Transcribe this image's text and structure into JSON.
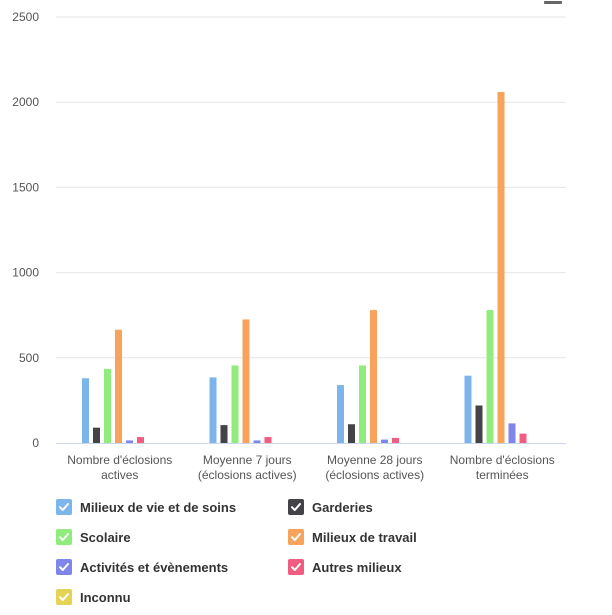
{
  "chart_data": {
    "type": "bar",
    "ylim": [
      0,
      2500
    ],
    "yticks": [
      0,
      500,
      1000,
      1500,
      2000,
      2500
    ],
    "grid": true,
    "legend_position": "bottom",
    "categories": [
      [
        "Nombre d'éclosions",
        "actives"
      ],
      [
        "Moyenne 7 jours",
        "(éclosions actives)"
      ],
      [
        "Moyenne 28 jours",
        "(éclosions actives)"
      ],
      [
        "Nombre d'éclosions",
        "terminées"
      ]
    ],
    "series": [
      {
        "name": "Milieux de vie et de soins",
        "color": "#7cb5ec",
        "values": [
          380,
          385,
          340,
          395
        ]
      },
      {
        "name": "Garderies",
        "color": "#434348",
        "values": [
          90,
          105,
          110,
          220
        ]
      },
      {
        "name": "Scolaire",
        "color": "#90ed7d",
        "values": [
          435,
          455,
          455,
          780
        ]
      },
      {
        "name": "Milieux de travail",
        "color": "#f7a35c",
        "values": [
          665,
          725,
          780,
          2060
        ]
      },
      {
        "name": "Activités et évènements",
        "color": "#8085e9",
        "values": [
          15,
          15,
          20,
          115
        ]
      },
      {
        "name": "Autres milieux",
        "color": "#f15c80",
        "values": [
          35,
          35,
          30,
          55
        ]
      },
      {
        "name": "Inconnu",
        "color": "#e4d354",
        "values": [
          0,
          0,
          0,
          0
        ]
      }
    ]
  },
  "icons": {
    "menu": "hamburger-menu-icon",
    "legend_marker": "check-icon"
  }
}
